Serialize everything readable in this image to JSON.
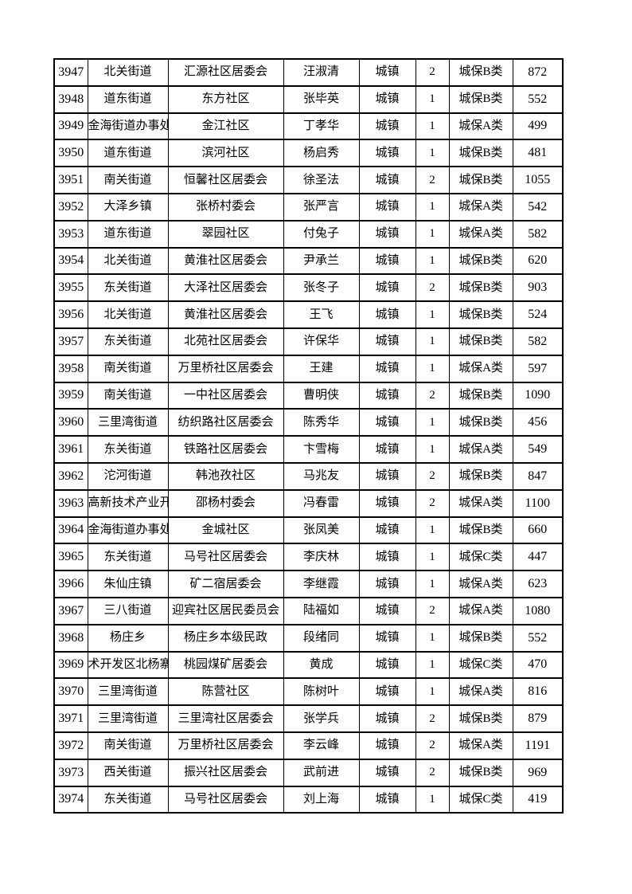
{
  "page": {
    "background_color": "#ffffff",
    "text_color": "#000000",
    "border_color": "#000000"
  },
  "table": {
    "rows": [
      [
        "3947",
        "北关街道",
        "汇源社区居委会",
        "汪淑清",
        "城镇",
        "2",
        "城保B类",
        "872"
      ],
      [
        "3948",
        "道东街道",
        "东方社区",
        "张毕英",
        "城镇",
        "1",
        "城保B类",
        "552"
      ],
      [
        "3949",
        "金海街道办事处",
        "金江社区",
        "丁孝华",
        "城镇",
        "1",
        "城保A类",
        "499"
      ],
      [
        "3950",
        "道东街道",
        "滨河社区",
        "杨启秀",
        "城镇",
        "1",
        "城保B类",
        "481"
      ],
      [
        "3951",
        "南关街道",
        "恒馨社区居委会",
        "徐圣法",
        "城镇",
        "2",
        "城保B类",
        "1055"
      ],
      [
        "3952",
        "大泽乡镇",
        "张桥村委会",
        "张严言",
        "城镇",
        "1",
        "城保A类",
        "542"
      ],
      [
        "3953",
        "道东街道",
        "翠园社区",
        "付兔子",
        "城镇",
        "1",
        "城保A类",
        "582"
      ],
      [
        "3954",
        "北关街道",
        "黄淮社区居委会",
        "尹承兰",
        "城镇",
        "1",
        "城保B类",
        "620"
      ],
      [
        "3955",
        "东关街道",
        "大泽社区居委会",
        "张冬子",
        "城镇",
        "2",
        "城保B类",
        "903"
      ],
      [
        "3956",
        "北关街道",
        "黄淮社区居委会",
        "王飞",
        "城镇",
        "1",
        "城保B类",
        "524"
      ],
      [
        "3957",
        "东关街道",
        "北苑社区居委会",
        "许保华",
        "城镇",
        "1",
        "城保B类",
        "582"
      ],
      [
        "3958",
        "南关街道",
        "万里桥社区居委会",
        "王建",
        "城镇",
        "1",
        "城保A类",
        "597"
      ],
      [
        "3959",
        "南关街道",
        "一中社区居委会",
        "曹明侠",
        "城镇",
        "2",
        "城保B类",
        "1090"
      ],
      [
        "3960",
        "三里湾街道",
        "纺织路社区居委会",
        "陈秀华",
        "城镇",
        "1",
        "城保B类",
        "456"
      ],
      [
        "3961",
        "东关街道",
        "铁路社区居委会",
        "卞雪梅",
        "城镇",
        "1",
        "城保A类",
        "549"
      ],
      [
        "3962",
        "沱河街道",
        "韩池孜社区",
        "马兆友",
        "城镇",
        "2",
        "城保B类",
        "847"
      ],
      [
        "3963",
        "高新技术产业开",
        "邵杨村委会",
        "冯春雷",
        "城镇",
        "2",
        "城保A类",
        "1100"
      ],
      [
        "3964",
        "金海街道办事处",
        "金城社区",
        "张凤美",
        "城镇",
        "1",
        "城保B类",
        "660"
      ],
      [
        "3965",
        "东关街道",
        "马号社区居委会",
        "李庆林",
        "城镇",
        "1",
        "城保C类",
        "447"
      ],
      [
        "3966",
        "朱仙庄镇",
        "矿二宿居委会",
        "李继霞",
        "城镇",
        "1",
        "城保A类",
        "623"
      ],
      [
        "3967",
        "三八街道",
        "迎宾社区居民委员会",
        "陆福如",
        "城镇",
        "2",
        "城保A类",
        "1080"
      ],
      [
        "3968",
        "杨庄乡",
        "杨庄乡本级民政",
        "段绪同",
        "城镇",
        "1",
        "城保B类",
        "552"
      ],
      [
        "3969",
        "术开发区北杨寨",
        "桃园煤矿居委会",
        "黄成",
        "城镇",
        "1",
        "城保C类",
        "470"
      ],
      [
        "3970",
        "三里湾街道",
        "陈营社区",
        "陈树叶",
        "城镇",
        "1",
        "城保A类",
        "816"
      ],
      [
        "3971",
        "三里湾街道",
        "三里湾社区居委会",
        "张学兵",
        "城镇",
        "2",
        "城保B类",
        "879"
      ],
      [
        "3972",
        "南关街道",
        "万里桥社区居委会",
        "李云峰",
        "城镇",
        "2",
        "城保A类",
        "1191"
      ],
      [
        "3973",
        "西关街道",
        "振兴社区居委会",
        "武前进",
        "城镇",
        "2",
        "城保B类",
        "969"
      ],
      [
        "3974",
        "东关街道",
        "马号社区居委会",
        "刘上海",
        "城镇",
        "1",
        "城保C类",
        "419"
      ]
    ]
  }
}
